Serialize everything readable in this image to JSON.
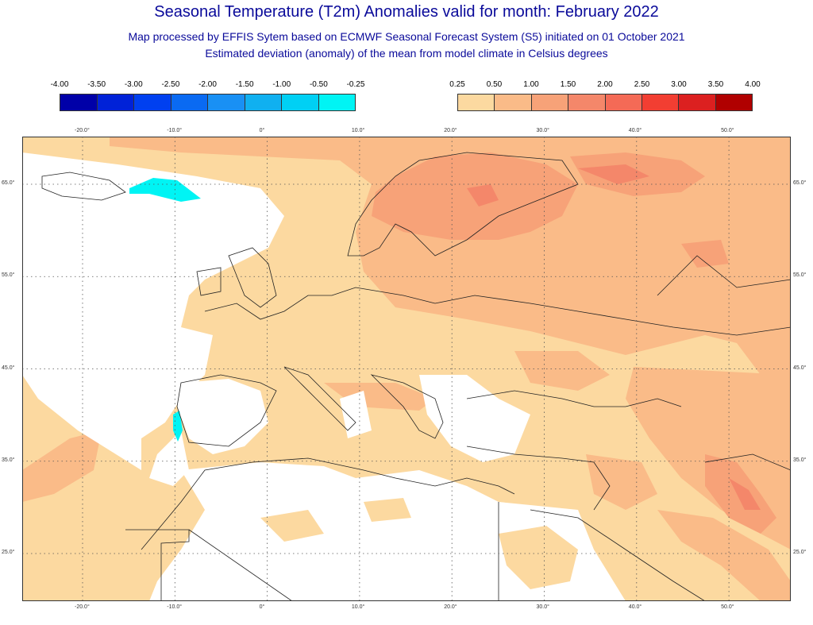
{
  "header": {
    "title": "Seasonal Temperature (T2m) Anomalies valid for month: February 2022",
    "subtitle1": "Map processed by EFFIS Sytem based on ECMWF Seasonal Forecast System (S5) initiated on 01 October 2021",
    "subtitle2": "Estimated deviation (anomaly) of the mean from model climate in Celsius degrees"
  },
  "legend_negative": {
    "labels": [
      "-4.00",
      "-3.50",
      "-3.00",
      "-2.50",
      "-2.00",
      "-1.50",
      "-1.00",
      "-0.50",
      "-0.25"
    ],
    "colors": [
      "#0000a8",
      "#0022d8",
      "#0040f0",
      "#0a6af2",
      "#1990f4",
      "#10b0f0",
      "#00d0f4",
      "#00f4f4"
    ]
  },
  "legend_positive": {
    "labels": [
      "0.25",
      "0.50",
      "1.00",
      "1.50",
      "2.00",
      "2.50",
      "3.00",
      "3.50",
      "4.00"
    ],
    "colors": [
      "#fcd9a0",
      "#fabb88",
      "#f7a278",
      "#f4876a",
      "#f46a56",
      "#f23e32",
      "#dc2020",
      "#b00000"
    ]
  },
  "map": {
    "lon_labels": [
      "-20.0°",
      "-10.0°",
      "0°",
      "10.0°",
      "20.0°",
      "30.0°",
      "40.0°",
      "50.0°"
    ],
    "lat_labels": [
      "65.0°",
      "55.0°",
      "45.0°",
      "35.0°",
      "25.0°"
    ],
    "background_color": "#ffffff",
    "base_anomaly_color": "#fcd9a0"
  }
}
